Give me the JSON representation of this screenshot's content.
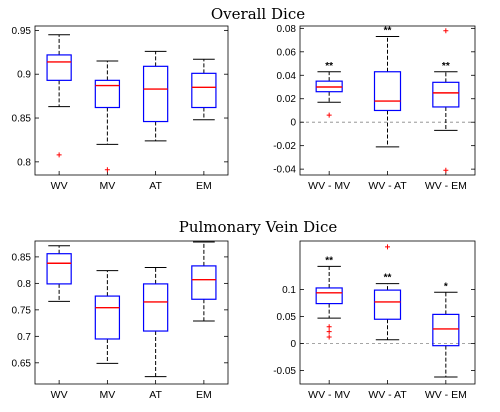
{
  "titles": {
    "overall": "Overall Dice",
    "pulmonary": "Pulmonary Vein Dice"
  },
  "colors": {
    "box": "#0000ff",
    "median": "#ff0000",
    "whisker": "#000000",
    "outlier": "#ff0000",
    "zero_line": "#888888"
  },
  "chart_data": [
    {
      "type": "box",
      "section": "Overall Dice",
      "categories": [
        "WV",
        "MV",
        "AT",
        "EM"
      ],
      "ylim": [
        0.785,
        0.955
      ],
      "yticks": [
        "0.95",
        "0.9",
        "0.85",
        "0.8"
      ],
      "ytick_values": [
        0.95,
        0.9,
        0.85,
        0.8
      ],
      "zero_line": false,
      "boxes": [
        {
          "whisker_low": 0.863,
          "q1": 0.893,
          "median": 0.914,
          "q3": 0.922,
          "whisker_high": 0.945,
          "outliers": [
            0.808
          ],
          "significance": ""
        },
        {
          "whisker_low": 0.82,
          "q1": 0.862,
          "median": 0.887,
          "q3": 0.893,
          "whisker_high": 0.915,
          "outliers": [
            0.791
          ],
          "significance": ""
        },
        {
          "whisker_low": 0.824,
          "q1": 0.846,
          "median": 0.883,
          "q3": 0.909,
          "whisker_high": 0.926,
          "outliers": [],
          "significance": ""
        },
        {
          "whisker_low": 0.848,
          "q1": 0.862,
          "median": 0.885,
          "q3": 0.901,
          "whisker_high": 0.917,
          "outliers": [],
          "significance": ""
        }
      ]
    },
    {
      "type": "box",
      "section": "Overall Dice",
      "categories": [
        "WV - MV",
        "WV - AT",
        "WV - EM"
      ],
      "ylim": [
        -0.045,
        0.082
      ],
      "yticks": [
        "0.08",
        "0.06",
        "0.04",
        "0.02",
        "0",
        "-0.02",
        "-0.04"
      ],
      "ytick_values": [
        0.08,
        0.06,
        0.04,
        0.02,
        0,
        -0.02,
        -0.04
      ],
      "zero_line": true,
      "boxes": [
        {
          "whisker_low": 0.017,
          "q1": 0.026,
          "median": 0.03,
          "q3": 0.035,
          "whisker_high": 0.043,
          "outliers": [
            0.006
          ],
          "significance": "**"
        },
        {
          "whisker_low": -0.021,
          "q1": 0.01,
          "median": 0.018,
          "q3": 0.043,
          "whisker_high": 0.073,
          "outliers": [],
          "significance": "**"
        },
        {
          "whisker_low": -0.007,
          "q1": 0.013,
          "median": 0.025,
          "q3": 0.034,
          "whisker_high": 0.043,
          "outliers": [
            0.078,
            -0.041
          ],
          "significance": "**"
        }
      ]
    },
    {
      "type": "box",
      "section": "Pulmonary Vein Dice",
      "categories": [
        "WV",
        "MV",
        "AT",
        "EM"
      ],
      "ylim": [
        0.61,
        0.88
      ],
      "yticks": [
        "0.85",
        "0.8",
        "0.75",
        "0.7",
        "0.65"
      ],
      "ytick_values": [
        0.85,
        0.8,
        0.75,
        0.7,
        0.65
      ],
      "zero_line": false,
      "boxes": [
        {
          "whisker_low": 0.766,
          "q1": 0.799,
          "median": 0.838,
          "q3": 0.856,
          "whisker_high": 0.871,
          "outliers": [],
          "significance": ""
        },
        {
          "whisker_low": 0.649,
          "q1": 0.695,
          "median": 0.754,
          "q3": 0.776,
          "whisker_high": 0.824,
          "outliers": [],
          "significance": ""
        },
        {
          "whisker_low": 0.624,
          "q1": 0.71,
          "median": 0.765,
          "q3": 0.799,
          "whisker_high": 0.83,
          "outliers": [],
          "significance": ""
        },
        {
          "whisker_low": 0.729,
          "q1": 0.77,
          "median": 0.807,
          "q3": 0.833,
          "whisker_high": 0.878,
          "outliers": [],
          "significance": ""
        }
      ]
    },
    {
      "type": "box",
      "section": "Pulmonary Vein Dice",
      "categories": [
        "WV - MV",
        "WV - AT",
        "WV - EM"
      ],
      "ylim": [
        -0.075,
        0.19
      ],
      "yticks": [
        "0.1",
        "0.05",
        "0",
        "-0.05"
      ],
      "ytick_values": [
        0.1,
        0.05,
        0,
        -0.05
      ],
      "zero_line": true,
      "boxes": [
        {
          "whisker_low": 0.047,
          "q1": 0.074,
          "median": 0.094,
          "q3": 0.103,
          "whisker_high": 0.143,
          "outliers": [
            0.031,
            0.022,
            0.012
          ],
          "significance": "**"
        },
        {
          "whisker_low": 0.007,
          "q1": 0.045,
          "median": 0.077,
          "q3": 0.099,
          "whisker_high": 0.111,
          "outliers": [
            0.179
          ],
          "significance": "**"
        },
        {
          "whisker_low": -0.062,
          "q1": -0.004,
          "median": 0.027,
          "q3": 0.054,
          "whisker_high": 0.095,
          "outliers": [],
          "significance": "*"
        }
      ]
    }
  ]
}
